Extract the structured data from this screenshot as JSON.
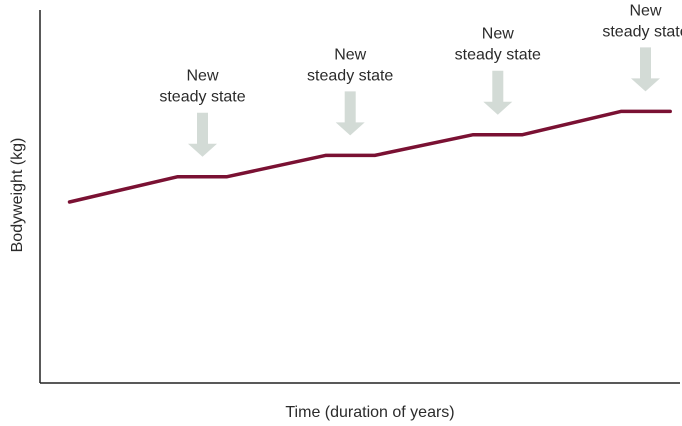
{
  "chart_data": {
    "type": "line",
    "title": "",
    "xlabel": "Time (duration of years)",
    "ylabel": "Bodyweight (kg)",
    "x_ticks_shown": false,
    "y_ticks_shown": false,
    "grid": false,
    "legend": "none",
    "series": [
      {
        "color": "#7a1133",
        "x": [
          0,
          1.1,
          1.6,
          2.6,
          3.1,
          4.1,
          4.6,
          5.6,
          6.1
        ],
        "y": [
          100,
          103.9,
          103.9,
          107.2,
          107.2,
          110.4,
          110.4,
          114.0,
          114.0
        ]
      }
    ],
    "xlim": [
      -0.3,
      6.2
    ],
    "ylim": [
      72,
      130
    ],
    "annotations": [
      {
        "lines": [
          "New",
          "steady state"
        ],
        "x": 1.35,
        "y": 103.9
      },
      {
        "lines": [
          "New",
          "steady state"
        ],
        "x": 2.85,
        "y": 107.2
      },
      {
        "lines": [
          "New",
          "steady state"
        ],
        "x": 4.35,
        "y": 110.4
      },
      {
        "lines": [
          "New",
          "steady state"
        ],
        "x": 5.85,
        "y": 114.0
      }
    ],
    "colors": {
      "line": "#7a1133",
      "arrow": "#d3dbd6",
      "axis": "#222222",
      "text": "#2b2b2b"
    }
  }
}
